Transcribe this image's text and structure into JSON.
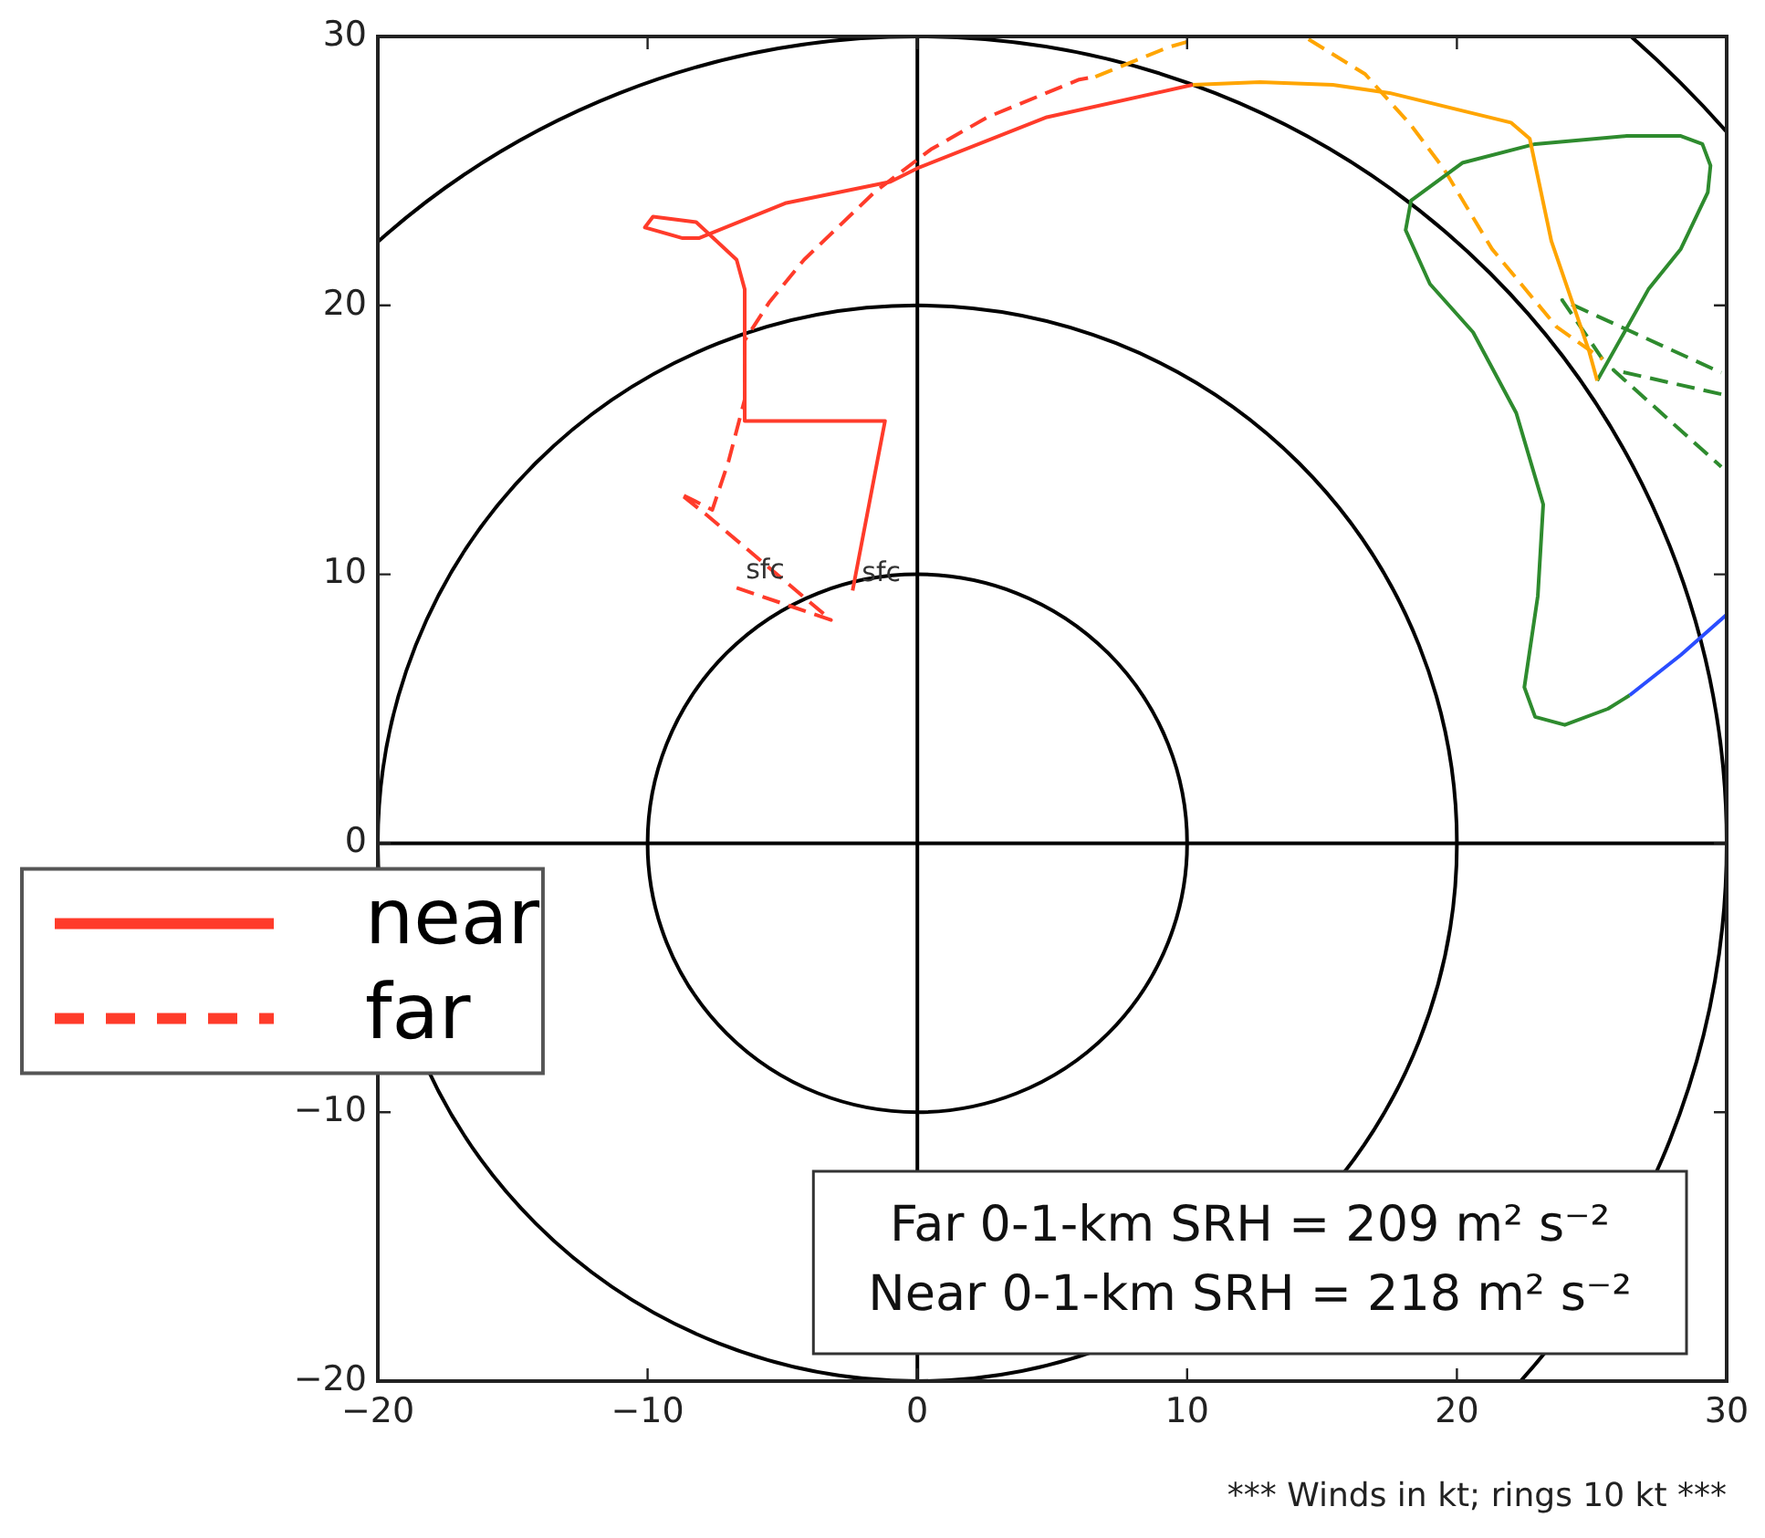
{
  "chart_data": {
    "type": "line",
    "xlim": [
      -20,
      30
    ],
    "ylim": [
      -20,
      30
    ],
    "xticks": [
      -20,
      -10,
      0,
      10,
      20,
      30
    ],
    "yticks": [
      -20,
      -10,
      0,
      10,
      20,
      30
    ],
    "legend": "left",
    "marker": "none",
    "series": [
      {
        "name": "near",
        "color": "#ff3b2a",
        "line_style": "solid",
        "x": [
          -2.4,
          -1.2,
          -6.4,
          -6.4,
          -6.7,
          -8.2,
          -9.8,
          -10.1,
          -8.7,
          -8.1,
          -4.9,
          -1.0,
          0,
          4.8,
          10.2
        ],
        "values": [
          9.4,
          15.7,
          15.7,
          20.6,
          21.7,
          23.1,
          23.3,
          22.9,
          22.5,
          22.5,
          23.8,
          24.6,
          25.1,
          27.0,
          28.2
        ]
      },
      {
        "color": "#ffa500",
        "line_style": "solid",
        "x": [
          10.2,
          12.7,
          15.4,
          17.5,
          22.0,
          22.7,
          23.5,
          24.9,
          25.2
        ],
        "values": [
          28.2,
          28.3,
          28.2,
          27.9,
          26.8,
          26.2,
          22.4,
          18.3,
          17.2
        ]
      },
      {
        "color": "#2e8b2e",
        "line_style": "solid",
        "x": [
          25.2,
          27.1,
          28.3,
          29.3,
          29.4,
          29.1,
          28.3,
          26.3,
          22.9,
          20.2,
          18.3,
          18.1,
          19.0,
          20.6,
          22.2,
          23.2,
          23.0,
          22.5,
          22.9,
          24.0,
          25.6,
          26.4
        ],
        "values": [
          17.2,
          20.6,
          22.1,
          24.2,
          25.2,
          26.0,
          26.3,
          26.3,
          26.0,
          25.3,
          23.9,
          22.8,
          20.8,
          19.0,
          16.0,
          12.6,
          9.2,
          5.8,
          4.7,
          4.4,
          5.0,
          5.5
        ]
      },
      {
        "color": "#2a4dff",
        "line_style": "solid",
        "x": [
          26.4,
          28.3,
          30.0
        ],
        "values": [
          5.5,
          7.0,
          8.5
        ]
      },
      {
        "name": "far",
        "color": "#ff3b2a",
        "line_style": "dashed",
        "x": [
          -6.7,
          -3.2,
          -7.8,
          -8.8,
          -7.6,
          -7.0,
          -6.4,
          -6.4,
          -5.5,
          -4.2,
          -1.6,
          0.5,
          2.6,
          6.0,
          6.6
        ],
        "values": [
          9.5,
          8.3,
          12.2,
          13.0,
          12.4,
          14.2,
          16.5,
          18.7,
          20.1,
          21.7,
          24.2,
          25.8,
          27.0,
          28.4,
          28.5
        ]
      },
      {
        "color": "#ffa500",
        "line_style": "dashed",
        "x": [
          6.6,
          9.3,
          10.0,
          null,
          14.5,
          16.6,
          18.3,
          19.5,
          21.3,
          23.7,
          25.4
        ],
        "values": [
          28.5,
          29.6,
          29.8,
          null,
          29.9,
          28.6,
          26.7,
          25.1,
          22.1,
          19.2,
          18.0
        ]
      },
      {
        "color": "#2e8b2e",
        "line_style": "dashed",
        "x": [
          25.4,
          23.9,
          29.8,
          null,
          29.8,
          25.8,
          29.8
        ],
        "values": [
          18.0,
          20.2,
          17.5,
          null,
          16.7,
          17.6,
          14.0
        ]
      }
    ],
    "annotations": [
      "Far 0-1-km SRH = 209 m² s⁻²",
      "Near 0-1-km SRH = 218 m² s⁻²",
      "*** Winds in kt; rings 10 kt ***",
      {
        "text": "sfc",
        "x": -6.7,
        "y": 9.5
      },
      {
        "text": "sfc",
        "x": -2.4,
        "y": 9.4
      }
    ]
  }
}
